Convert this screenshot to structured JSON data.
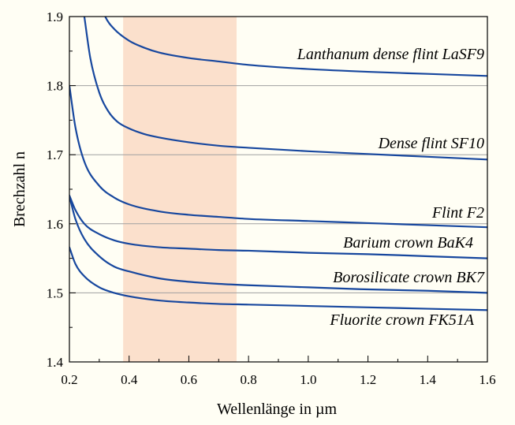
{
  "chart_data": {
    "type": "line",
    "title": "",
    "xlabel": "Wellenlänge in µm",
    "ylabel": "Brechzahl n",
    "xlim": [
      0.2,
      1.6
    ],
    "ylim": [
      1.4,
      1.9
    ],
    "xticks": [
      0.2,
      0.4,
      0.6,
      0.8,
      1.0,
      1.2,
      1.4,
      1.6
    ],
    "xtick_labels": [
      "0.2",
      "0.4",
      "0.6",
      "0.8",
      "1.0",
      "1.2",
      "1.4",
      "1.6"
    ],
    "yticks": [
      1.4,
      1.5,
      1.6,
      1.7,
      1.8,
      1.9
    ],
    "ytick_labels": [
      "1.4",
      "1.5",
      "1.6",
      "1.7",
      "1.8",
      "1.9"
    ],
    "grid": "horizontal",
    "highlight_band": {
      "x": [
        0.38,
        0.76
      ],
      "color": "#fbe0cc"
    },
    "colors": {
      "background": "#fffef4",
      "line": "#17479e",
      "grid": "#a0a0a0",
      "axis": "#000000"
    },
    "series": [
      {
        "name": "Lanthanum dense flint LaSF9",
        "x": [
          0.3,
          0.32,
          0.35,
          0.4,
          0.45,
          0.5,
          0.6,
          0.7,
          0.8,
          1.0,
          1.2,
          1.4,
          1.6
        ],
        "y": [
          1.925,
          1.9,
          1.882,
          1.865,
          1.855,
          1.848,
          1.84,
          1.835,
          1.83,
          1.824,
          1.82,
          1.817,
          1.814
        ]
      },
      {
        "name": "Dense flint SF10",
        "x": [
          0.25,
          0.27,
          0.3,
          0.33,
          0.36,
          0.4,
          0.45,
          0.5,
          0.6,
          0.7,
          0.8,
          1.0,
          1.2,
          1.4,
          1.6
        ],
        "y": [
          1.9,
          1.84,
          1.79,
          1.763,
          1.748,
          1.738,
          1.73,
          1.725,
          1.718,
          1.713,
          1.71,
          1.705,
          1.701,
          1.697,
          1.693
        ]
      },
      {
        "name": "Flint F2",
        "x": [
          0.2,
          0.22,
          0.25,
          0.3,
          0.35,
          0.4,
          0.5,
          0.6,
          0.7,
          0.8,
          1.0,
          1.2,
          1.4,
          1.6
        ],
        "y": [
          1.8,
          1.74,
          1.69,
          1.655,
          1.638,
          1.628,
          1.618,
          1.613,
          1.61,
          1.607,
          1.604,
          1.601,
          1.598,
          1.595
        ]
      },
      {
        "name": "Barium crown BaK4",
        "x": [
          0.2,
          0.22,
          0.25,
          0.3,
          0.35,
          0.4,
          0.5,
          0.6,
          0.7,
          0.8,
          1.0,
          1.2,
          1.4,
          1.6
        ],
        "y": [
          1.641,
          1.62,
          1.6,
          1.585,
          1.576,
          1.571,
          1.566,
          1.564,
          1.562,
          1.561,
          1.558,
          1.556,
          1.553,
          1.55
        ]
      },
      {
        "name": "Borosilicate crown BK7",
        "x": [
          0.2,
          0.22,
          0.25,
          0.3,
          0.35,
          0.4,
          0.5,
          0.6,
          0.7,
          0.8,
          1.0,
          1.2,
          1.4,
          1.6
        ],
        "y": [
          1.64,
          1.607,
          1.578,
          1.553,
          1.538,
          1.531,
          1.521,
          1.516,
          1.513,
          1.511,
          1.508,
          1.505,
          1.503,
          1.5
        ]
      },
      {
        "name": "Fluorite crown FK51A",
        "x": [
          0.2,
          0.22,
          0.25,
          0.3,
          0.35,
          0.4,
          0.5,
          0.6,
          0.7,
          0.8,
          1.0,
          1.2,
          1.4,
          1.6
        ],
        "y": [
          1.566,
          1.542,
          1.524,
          1.508,
          1.5,
          1.495,
          1.489,
          1.486,
          1.484,
          1.483,
          1.481,
          1.479,
          1.477,
          1.475
        ]
      }
    ]
  }
}
